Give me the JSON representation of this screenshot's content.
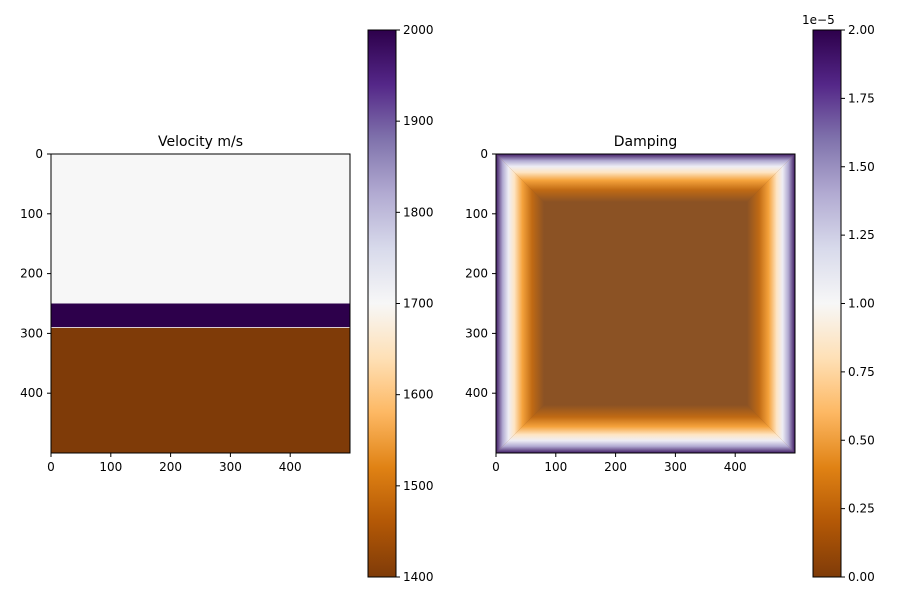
{
  "chart_data": [
    {
      "type": "heatmap",
      "title": "Velocity m/s",
      "x_ticks": [
        "0",
        "100",
        "200",
        "300",
        "400"
      ],
      "y_ticks": [
        "0",
        "100",
        "200",
        "300",
        "400"
      ],
      "xlim": [
        0,
        500
      ],
      "ylim": [
        500,
        0
      ],
      "layers": [
        {
          "depth_from": 0,
          "depth_to": 250,
          "value": 1700
        },
        {
          "depth_from": 250,
          "depth_to": 290,
          "value": 2000
        },
        {
          "depth_from": 290,
          "depth_to": 500,
          "value": 1400
        }
      ],
      "colorbar": {
        "min": 1400,
        "max": 2000,
        "ticks": [
          "1400",
          "1500",
          "1600",
          "1700",
          "1800",
          "1900",
          "2000"
        ],
        "offset_text": ""
      },
      "colormap": "PuOr"
    },
    {
      "type": "heatmap",
      "title": "Damping",
      "x_ticks": [
        "0",
        "100",
        "200",
        "300",
        "400"
      ],
      "y_ticks": [
        "0",
        "100",
        "200",
        "300",
        "400"
      ],
      "xlim": [
        0,
        500
      ],
      "ylim": [
        500,
        0
      ],
      "damping": {
        "interior_value": 0,
        "edge_value": 2e-05,
        "boundary_width": 80
      },
      "colorbar": {
        "min": 0,
        "max": 2.0,
        "ticks": [
          "0.00",
          "0.25",
          "0.50",
          "0.75",
          "1.00",
          "1.25",
          "1.50",
          "1.75",
          "2.00"
        ],
        "offset_text": "1e−5"
      },
      "colormap": "PuOr"
    }
  ]
}
